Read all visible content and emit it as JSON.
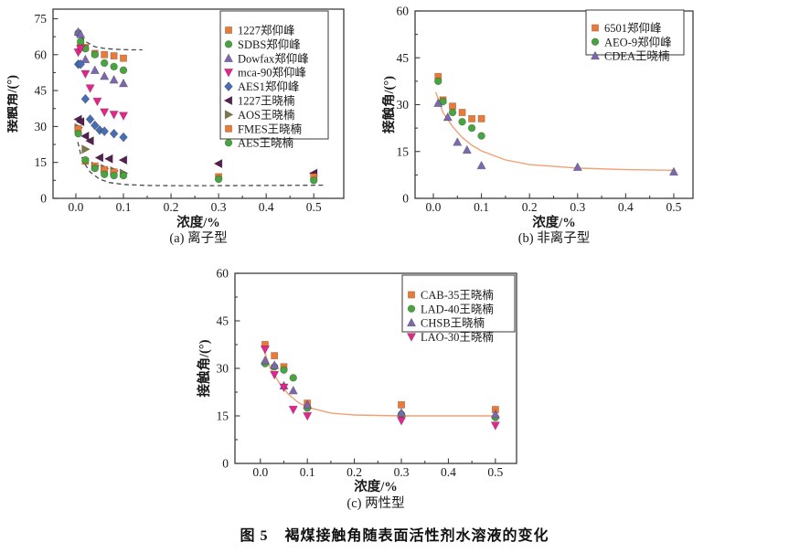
{
  "figure": {
    "caption_label": "图 5",
    "caption_text": "褐煤接触角随表面活性剂水溶液的变化"
  },
  "chart_data": [
    {
      "id": "a",
      "type": "scatter",
      "subtitle": "(a) 离子型",
      "xlabel": "浓度/%",
      "ylabel": "接触角/(°)",
      "xlim": [
        -0.048,
        0.563
      ],
      "ylim": [
        0,
        79
      ],
      "x_ticks": [
        0.0,
        0.1,
        0.2,
        0.3,
        0.4,
        0.5
      ],
      "x_tick_labels": [
        "0.0",
        "0.1",
        "0.2",
        "0.3",
        "0.4",
        "0.5"
      ],
      "y_ticks": [
        0,
        15,
        30,
        45,
        60,
        75
      ],
      "x_minor_ticks": [
        0.05,
        0.15,
        0.25,
        0.35,
        0.45
      ],
      "y_minor_ticks": [
        7.5,
        22.5,
        37.5,
        52.5,
        67.5
      ],
      "grid": false,
      "legend_position": "upper right",
      "series": [
        {
          "name": "1227郑仰峰",
          "marker": "square",
          "color": "#ea7a38",
          "points": [
            [
              0.01,
              63.5
            ],
            [
              0.02,
              63
            ],
            [
              0.04,
              60.5
            ],
            [
              0.06,
              60
            ],
            [
              0.08,
              59.5
            ],
            [
              0.1,
              58.5
            ]
          ]
        },
        {
          "name": "SDBS郑仰峰",
          "marker": "circle",
          "color": "#4aa342",
          "points": [
            [
              0.005,
              69
            ],
            [
              0.01,
              65.5
            ],
            [
              0.02,
              62.5
            ],
            [
              0.04,
              60
            ],
            [
              0.06,
              56.5
            ],
            [
              0.08,
              55
            ],
            [
              0.1,
              53.5
            ]
          ]
        },
        {
          "name": "Dowfax郑仰峰",
          "marker": "triangle-up",
          "color": "#7b68ad",
          "points": [
            [
              0.005,
              69.5
            ],
            [
              0.01,
              68.5
            ],
            [
              0.02,
              58
            ],
            [
              0.04,
              53.5
            ],
            [
              0.06,
              51
            ],
            [
              0.08,
              49.5
            ],
            [
              0.1,
              48
            ]
          ]
        },
        {
          "name": "mca-90郑仰峰",
          "marker": "triangle-down",
          "color": "#e3268b",
          "points": [
            [
              0.005,
              61
            ],
            [
              0.01,
              62.5
            ],
            [
              0.02,
              52
            ],
            [
              0.03,
              46
            ],
            [
              0.045,
              40.5
            ],
            [
              0.06,
              36
            ],
            [
              0.08,
              35
            ],
            [
              0.1,
              34.5
            ]
          ]
        },
        {
          "name": "AES1郑仰峰",
          "marker": "diamond",
          "color": "#4a6cb3",
          "points": [
            [
              0.005,
              56
            ],
            [
              0.01,
              56
            ],
            [
              0.02,
              41.5
            ],
            [
              0.03,
              33
            ],
            [
              0.04,
              30.5
            ],
            [
              0.05,
              28.5
            ],
            [
              0.06,
              28
            ],
            [
              0.08,
              27
            ],
            [
              0.1,
              25.5
            ]
          ]
        },
        {
          "name": "1227王晓楠",
          "marker": "triangle-left",
          "color": "#542050",
          "points": [
            [
              0.005,
              33
            ],
            [
              0.01,
              32
            ],
            [
              0.02,
              26
            ],
            [
              0.03,
              24
            ],
            [
              0.05,
              17
            ],
            [
              0.07,
              16.5
            ],
            [
              0.1,
              16
            ],
            [
              0.3,
              14.5
            ],
            [
              0.5,
              10.5
            ]
          ]
        },
        {
          "name": "AOS王晓楠",
          "marker": "triangle-right",
          "color": "#7e7747",
          "points": [
            [
              0.005,
              29.5
            ],
            [
              0.02,
              20.5
            ],
            [
              0.04,
              13.5
            ],
            [
              0.06,
              12.5
            ],
            [
              0.08,
              11.5
            ],
            [
              0.1,
              10.5
            ]
          ]
        },
        {
          "name": "FMES王晓楠",
          "marker": "square",
          "color": "#ea7a38",
          "points": [
            [
              0.005,
              29
            ],
            [
              0.02,
              15.5
            ],
            [
              0.04,
              13.5
            ],
            [
              0.06,
              12
            ],
            [
              0.08,
              11
            ],
            [
              0.3,
              9
            ],
            [
              0.5,
              9
            ]
          ]
        },
        {
          "name": "AES王晓楠",
          "marker": "circle",
          "color": "#4aa342",
          "points": [
            [
              0.005,
              27
            ],
            [
              0.02,
              16
            ],
            [
              0.04,
              12.5
            ],
            [
              0.06,
              10
            ],
            [
              0.08,
              9.5
            ],
            [
              0.1,
              9.5
            ],
            [
              0.3,
              8
            ],
            [
              0.5,
              7.5
            ]
          ]
        }
      ],
      "fit_curves": [
        {
          "style": "dashed",
          "color": "#4a4a4a",
          "points": [
            [
              0.003,
              70.5
            ],
            [
              0.01,
              68
            ],
            [
              0.02,
              65.5
            ],
            [
              0.04,
              63.3
            ],
            [
              0.06,
              62.6
            ],
            [
              0.08,
              62.3
            ],
            [
              0.1,
              62.1
            ],
            [
              0.12,
              62
            ],
            [
              0.14,
              62
            ]
          ]
        },
        {
          "style": "dashed",
          "color": "#4a4a4a",
          "points": [
            [
              0.004,
              23.5
            ],
            [
              0.01,
              18.5
            ],
            [
              0.02,
              14
            ],
            [
              0.03,
              11
            ],
            [
              0.05,
              8
            ],
            [
              0.07,
              6.6
            ],
            [
              0.1,
              5.8
            ],
            [
              0.15,
              5.4
            ],
            [
              0.2,
              5.3
            ],
            [
              0.3,
              5.3
            ],
            [
              0.4,
              5.4
            ],
            [
              0.52,
              5.5
            ]
          ]
        }
      ]
    },
    {
      "id": "b",
      "type": "scatter",
      "subtitle": "(b) 非离子型",
      "xlabel": "浓度/%",
      "ylabel": "接触角/(°)",
      "xlim": [
        -0.038,
        0.54
      ],
      "ylim": [
        0,
        60
      ],
      "x_ticks": [
        0.0,
        0.1,
        0.2,
        0.3,
        0.4,
        0.5
      ],
      "x_tick_labels": [
        "0.0",
        "0.1",
        "0.2",
        "0.3",
        "0.4",
        "0.5"
      ],
      "y_ticks": [
        0,
        15,
        30,
        45,
        60
      ],
      "x_minor_ticks": [
        0.05,
        0.15,
        0.25,
        0.35,
        0.45
      ],
      "y_minor_ticks": [
        7.5,
        22.5,
        37.5,
        52.5
      ],
      "grid": false,
      "legend_position": "upper right",
      "series": [
        {
          "name": "6501郑仰峰",
          "marker": "square",
          "color": "#ea7a38",
          "points": [
            [
              0.01,
              39
            ],
            [
              0.02,
              31.5
            ],
            [
              0.04,
              29.5
            ],
            [
              0.06,
              27.5
            ],
            [
              0.08,
              25.5
            ],
            [
              0.1,
              25.5
            ]
          ]
        },
        {
          "name": "AEO-9郑仰峰",
          "marker": "circle",
          "color": "#4aa342",
          "points": [
            [
              0.01,
              37.5
            ],
            [
              0.02,
              31
            ],
            [
              0.04,
              27.5
            ],
            [
              0.06,
              24.5
            ],
            [
              0.08,
              22.5
            ],
            [
              0.1,
              20
            ]
          ]
        },
        {
          "name": "CDEA王晓楠",
          "marker": "triangle-up",
          "color": "#7b68ad",
          "points": [
            [
              0.01,
              30.5
            ],
            [
              0.03,
              26
            ],
            [
              0.05,
              18
            ],
            [
              0.07,
              15.5
            ],
            [
              0.1,
              10.5
            ],
            [
              0.3,
              10
            ],
            [
              0.5,
              8.5
            ]
          ]
        }
      ],
      "fit_curves": [
        {
          "style": "solid",
          "color": "#f0a173",
          "points": [
            [
              0.005,
              34
            ],
            [
              0.02,
              27.5
            ],
            [
              0.04,
              23
            ],
            [
              0.06,
              19.5
            ],
            [
              0.08,
              17
            ],
            [
              0.1,
              15.2
            ],
            [
              0.15,
              12.3
            ],
            [
              0.2,
              10.8
            ],
            [
              0.3,
              9.7
            ],
            [
              0.4,
              9.2
            ],
            [
              0.5,
              9
            ]
          ]
        }
      ]
    },
    {
      "id": "c",
      "type": "scatter",
      "subtitle": "(c) 两性型",
      "xlabel": "浓度/%",
      "ylabel": "接触角/(°)",
      "xlim": [
        -0.054,
        0.545
      ],
      "ylim": [
        0,
        60
      ],
      "x_ticks": [
        0.0,
        0.1,
        0.2,
        0.3,
        0.4,
        0.5
      ],
      "x_tick_labels": [
        "0.0",
        "0.1",
        "0.2",
        "0.3",
        "0.4",
        "0.5"
      ],
      "y_ticks": [
        0,
        15,
        30,
        45,
        60
      ],
      "x_minor_ticks": [
        0.05,
        0.15,
        0.25,
        0.35,
        0.45
      ],
      "y_minor_ticks": [
        7.5,
        22.5,
        37.5,
        52.5
      ],
      "grid": false,
      "legend_position": "upper right",
      "series": [
        {
          "name": "CAB-35王晓楠",
          "marker": "square",
          "color": "#ea7a38",
          "points": [
            [
              0.01,
              37.5
            ],
            [
              0.03,
              34
            ],
            [
              0.05,
              30.5
            ],
            [
              0.1,
              19
            ],
            [
              0.3,
              18.5
            ],
            [
              0.5,
              17
            ]
          ]
        },
        {
          "name": "LAD-40王晓楠",
          "marker": "circle",
          "color": "#4aa342",
          "points": [
            [
              0.01,
              31.5
            ],
            [
              0.03,
              30.5
            ],
            [
              0.05,
              29.5
            ],
            [
              0.07,
              27
            ],
            [
              0.1,
              17.5
            ],
            [
              0.3,
              15.5
            ],
            [
              0.5,
              14.5
            ]
          ]
        },
        {
          "name": "CHSB王晓楠",
          "marker": "triangle-up",
          "color": "#7b68ad",
          "points": [
            [
              0.01,
              32.5
            ],
            [
              0.03,
              31
            ],
            [
              0.05,
              24.5
            ],
            [
              0.07,
              23
            ],
            [
              0.1,
              18.5
            ],
            [
              0.3,
              16
            ],
            [
              0.5,
              15.5
            ]
          ]
        },
        {
          "name": "LAO-30王晓楠",
          "marker": "triangle-down",
          "color": "#e3268b",
          "points": [
            [
              0.01,
              36
            ],
            [
              0.03,
              28
            ],
            [
              0.05,
              24
            ],
            [
              0.07,
              17
            ],
            [
              0.1,
              15
            ],
            [
              0.3,
              13.5
            ],
            [
              0.5,
              12
            ]
          ]
        }
      ],
      "fit_curves": [
        {
          "style": "solid",
          "color": "#f0a173",
          "points": [
            [
              0.005,
              37
            ],
            [
              0.02,
              30.5
            ],
            [
              0.04,
              25.5
            ],
            [
              0.06,
              21.8
            ],
            [
              0.08,
              19.3
            ],
            [
              0.1,
              17.7
            ],
            [
              0.15,
              15.9
            ],
            [
              0.2,
              15.3
            ],
            [
              0.3,
              15
            ],
            [
              0.4,
              15
            ],
            [
              0.5,
              15
            ]
          ]
        }
      ]
    }
  ]
}
